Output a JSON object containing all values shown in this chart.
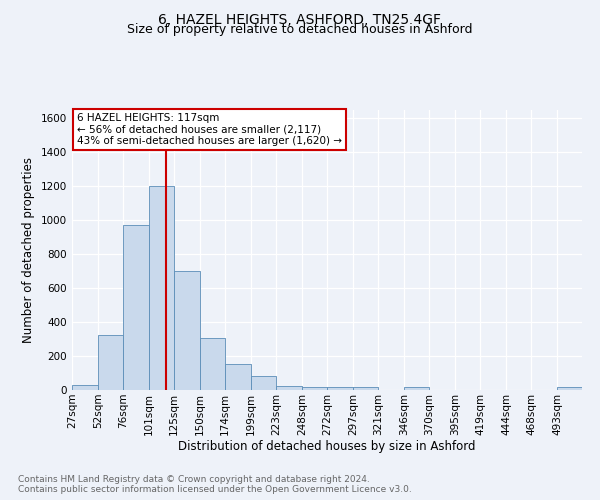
{
  "title": "6, HAZEL HEIGHTS, ASHFORD, TN25 4GF",
  "subtitle": "Size of property relative to detached houses in Ashford",
  "xlabel": "Distribution of detached houses by size in Ashford",
  "ylabel": "Number of detached properties",
  "footnote1": "Contains HM Land Registry data © Crown copyright and database right 2024.",
  "footnote2": "Contains public sector information licensed under the Open Government Licence v3.0.",
  "annotation_line1": "6 HAZEL HEIGHTS: 117sqm",
  "annotation_line2": "← 56% of detached houses are smaller (2,117)",
  "annotation_line3": "43% of semi-detached houses are larger (1,620) →",
  "bar_edges": [
    27,
    52,
    76,
    101,
    125,
    150,
    174,
    199,
    223,
    248,
    272,
    297,
    321,
    346,
    370,
    395,
    419,
    444,
    468,
    493,
    517
  ],
  "bar_heights": [
    30,
    325,
    970,
    1200,
    700,
    305,
    155,
    80,
    25,
    15,
    15,
    15,
    0,
    15,
    0,
    0,
    0,
    0,
    0,
    15
  ],
  "bar_color": "#c9d9ec",
  "bar_edgecolor": "#5b8db8",
  "vline_x": 117,
  "vline_color": "#cc0000",
  "ylim": [
    0,
    1650
  ],
  "yticks": [
    0,
    200,
    400,
    600,
    800,
    1000,
    1200,
    1400,
    1600
  ],
  "bg_color": "#eef2f9",
  "grid_color": "#ffffff",
  "annotation_box_color": "#ffffff",
  "annotation_box_edgecolor": "#cc0000",
  "title_fontsize": 10,
  "subtitle_fontsize": 9,
  "axis_label_fontsize": 8.5,
  "tick_fontsize": 7.5,
  "annotation_fontsize": 7.5,
  "footnote_fontsize": 6.5
}
